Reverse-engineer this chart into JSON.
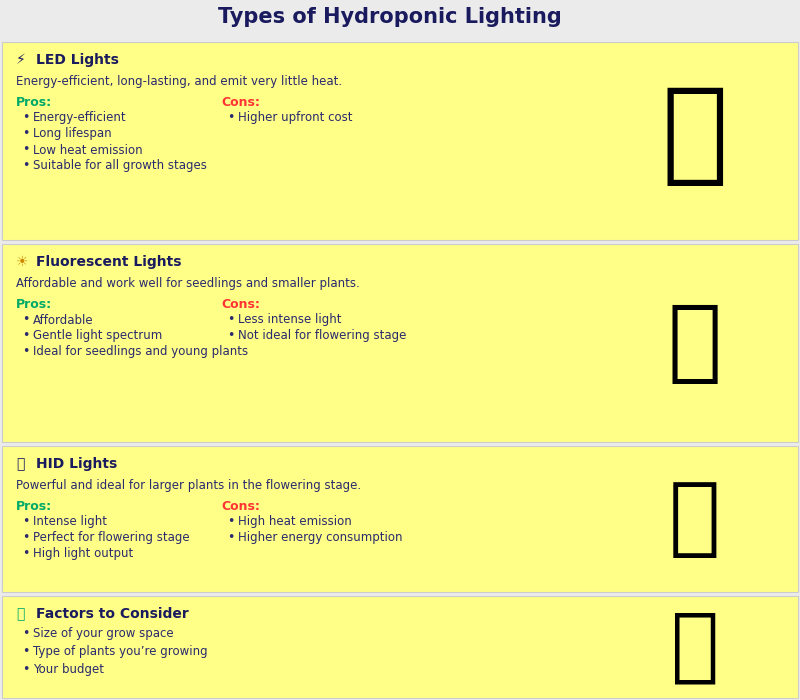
{
  "title": "Types of Hydroponic Lighting",
  "title_color": "#1a1a5e",
  "title_fontsize": 15,
  "bg_color": "#ebebeb",
  "section_bg": "#ffff88",
  "section_border": "#cccccc",
  "text_color": "#1a1a5e",
  "body_color": "#2a2a6e",
  "pros_color": "#00aa66",
  "cons_color": "#ff3333",
  "sections": [
    {
      "idx": 0,
      "title": "LED Lights",
      "description": "Energy-efficient, long-lasting, and emit very little heat.",
      "pros": [
        "Energy-efficient",
        "Long lifespan",
        "Low heat emission",
        "Suitable for all growth stages"
      ],
      "cons": [
        "Higher upfront cost"
      ],
      "bullets": []
    },
    {
      "idx": 1,
      "title": "Fluorescent Lights",
      "description": "Affordable and work well for seedlings and smaller plants.",
      "pros": [
        "Affordable",
        "Gentle light spectrum",
        "Ideal for seedlings and young plants"
      ],
      "cons": [
        "Less intense light",
        "Not ideal for flowering stage"
      ],
      "bullets": []
    },
    {
      "idx": 2,
      "title": "HID Lights",
      "description": "Powerful and ideal for larger plants in the flowering stage.",
      "pros": [
        "Intense light",
        "Perfect for flowering stage",
        "High light output"
      ],
      "cons": [
        "High heat emission",
        "Higher energy consumption"
      ],
      "bullets": []
    },
    {
      "idx": 3,
      "title": "Factors to Consider",
      "description": "",
      "pros": [],
      "cons": [],
      "bullets": [
        "Size of your grow space",
        "Type of plants you’re growing",
        "Your budget"
      ]
    }
  ],
  "layout": [
    {
      "sy": 460,
      "sh": 198
    },
    {
      "sy": 258,
      "sh": 198
    },
    {
      "sy": 108,
      "sh": 146
    },
    {
      "sy": 2,
      "sh": 102
    }
  ]
}
